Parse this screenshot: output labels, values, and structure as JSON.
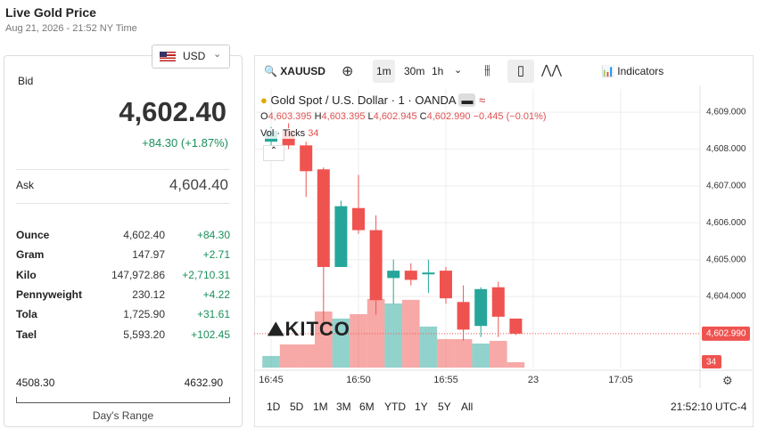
{
  "header": {
    "title": "Live Gold Price",
    "date": "Aug 21, 2026 - 21:52 NY Time",
    "currency": "USD"
  },
  "bid": {
    "label": "Bid",
    "price": "4,602.40",
    "change": "+84.30 (+1.87%)"
  },
  "ask": {
    "label": "Ask",
    "price": "4,604.40"
  },
  "units": [
    [
      "Ounce",
      "4,602.40",
      "+84.30"
    ],
    [
      "Gram",
      "147.97",
      "+2.71"
    ],
    [
      "Kilo",
      "147,972.86",
      "+2,710.31"
    ],
    [
      "Pennyweight",
      "230.12",
      "+4.22"
    ],
    [
      "Tola",
      "1,725.90",
      "+31.61"
    ],
    [
      "Tael",
      "5,593.20",
      "+102.45"
    ]
  ],
  "range": {
    "low": "4508.30",
    "high": "4632.90",
    "label": "Day's Range"
  },
  "toolbar": {
    "symbol": "XAUUSD",
    "intervals": [
      "1m",
      "30m",
      "1h"
    ],
    "indicators": "Indicators"
  },
  "legend": {
    "title": "Gold Spot / U.S. Dollar · 1 · OANDA",
    "ohlc": [
      [
        "O",
        "4,603.395"
      ],
      [
        "H",
        "4,603.395"
      ],
      [
        "L",
        "4,602.945"
      ],
      [
        "C",
        "4,602.990"
      ]
    ],
    "change": "−0.445 (−0.01%)",
    "vol_label": "Vol · Ticks",
    "vol_value": "34"
  },
  "logo": "KITCO",
  "chart": {
    "type": "candlestick",
    "ylim": [
      4602.07,
      4609.63
    ],
    "yticks": [
      {
        "value": 4609,
        "label": "4,609.000"
      },
      {
        "value": 4608,
        "label": "4,608.000"
      },
      {
        "value": 4607,
        "label": "4,607.000"
      },
      {
        "value": 4606,
        "label": "4,606.000"
      },
      {
        "value": 4605,
        "label": "4,605.000"
      },
      {
        "value": 4604,
        "label": "4,604.000"
      }
    ],
    "xticks": [
      "16:45",
      "16:50",
      "16:55",
      "23",
      "17:05"
    ],
    "open": [
      4608.2,
      4608.5,
      4608.1,
      4607.45,
      4604.8,
      4606.4,
      4605.8,
      4604.5,
      4604.7,
      4604.6,
      4604.7,
      4603.85,
      4603.2,
      4604.25,
      4603.4
    ],
    "high": [
      4608.6,
      4608.7,
      4608.2,
      4607.5,
      4606.6,
      4607.3,
      4606.2,
      4605.0,
      4604.9,
      4605.0,
      4604.8,
      4604.3,
      4604.25,
      4604.4,
      4603.4
    ],
    "low": [
      4608.1,
      4608.0,
      4606.7,
      4603.3,
      4604.8,
      4605.7,
      4603.5,
      4603.8,
      4604.3,
      4604.1,
      4603.8,
      4602.8,
      4602.9,
      4602.9,
      4602.95
    ],
    "close": [
      4608.5,
      4608.1,
      4607.4,
      4604.8,
      4606.45,
      4605.8,
      4603.9,
      4604.7,
      4604.45,
      4604.65,
      4603.95,
      4603.1,
      4604.2,
      4603.45,
      4602.99
    ],
    "volume": [
      74,
      147,
      147,
      357,
      312,
      340,
      436,
      408,
      431,
      261,
      181,
      181,
      153,
      170,
      34
    ],
    "up_color": "#26a69a",
    "down_color": "#ef5350",
    "grid": true,
    "last_price": {
      "value": 4602.99,
      "label": "4,602.990"
    },
    "last_volume": "34"
  },
  "ranges": [
    "1D",
    "5D",
    "1M",
    "3M",
    "6M",
    "YTD",
    "1Y",
    "5Y",
    "All"
  ],
  "clock": "21:52:10 UTC-4"
}
